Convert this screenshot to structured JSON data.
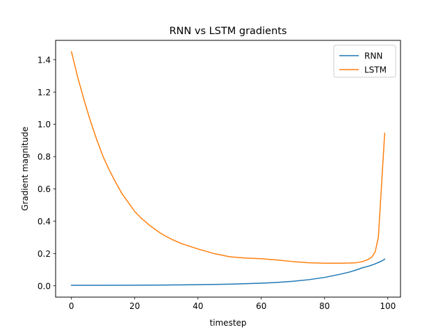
{
  "chart_data": {
    "type": "line",
    "title": "RNN vs LSTM gradients",
    "xlabel": "timestep",
    "ylabel": "Gradient magnitude",
    "xlim": [
      -5,
      104
    ],
    "ylim": [
      -0.07,
      1.52
    ],
    "xticks": [
      0,
      20,
      40,
      60,
      80,
      100
    ],
    "yticks": [
      0.0,
      0.2,
      0.4,
      0.6,
      0.8,
      1.0,
      1.2,
      1.4
    ],
    "ytick_labels": [
      "0.0",
      "0.2",
      "0.4",
      "0.6",
      "0.8",
      "1.0",
      "1.2",
      "1.4"
    ],
    "grid": false,
    "legend_position": "upper right",
    "series": [
      {
        "name": "RNN",
        "color": "#1f77b4",
        "x": [
          0,
          10,
          20,
          30,
          40,
          50,
          60,
          65,
          70,
          75,
          80,
          85,
          88,
          90,
          92,
          94,
          96,
          98,
          99
        ],
        "y": [
          0.003,
          0.003,
          0.004,
          0.005,
          0.007,
          0.01,
          0.016,
          0.021,
          0.028,
          0.038,
          0.052,
          0.072,
          0.086,
          0.098,
          0.112,
          0.122,
          0.136,
          0.153,
          0.165
        ]
      },
      {
        "name": "LSTM",
        "color": "#ff7f0e",
        "x": [
          0,
          2,
          4,
          6,
          8,
          10,
          12,
          14,
          16,
          18,
          20,
          22,
          25,
          28,
          30,
          32,
          35,
          40,
          45,
          50,
          55,
          60,
          65,
          70,
          75,
          80,
          85,
          88,
          90,
          92,
          94,
          95,
          96,
          97,
          98,
          99
        ],
        "y": [
          1.45,
          1.29,
          1.15,
          1.02,
          0.905,
          0.8,
          0.715,
          0.64,
          0.57,
          0.515,
          0.46,
          0.42,
          0.37,
          0.328,
          0.305,
          0.285,
          0.26,
          0.228,
          0.2,
          0.18,
          0.172,
          0.168,
          0.16,
          0.15,
          0.143,
          0.14,
          0.14,
          0.141,
          0.143,
          0.15,
          0.165,
          0.18,
          0.21,
          0.3,
          0.62,
          0.945
        ]
      }
    ]
  }
}
